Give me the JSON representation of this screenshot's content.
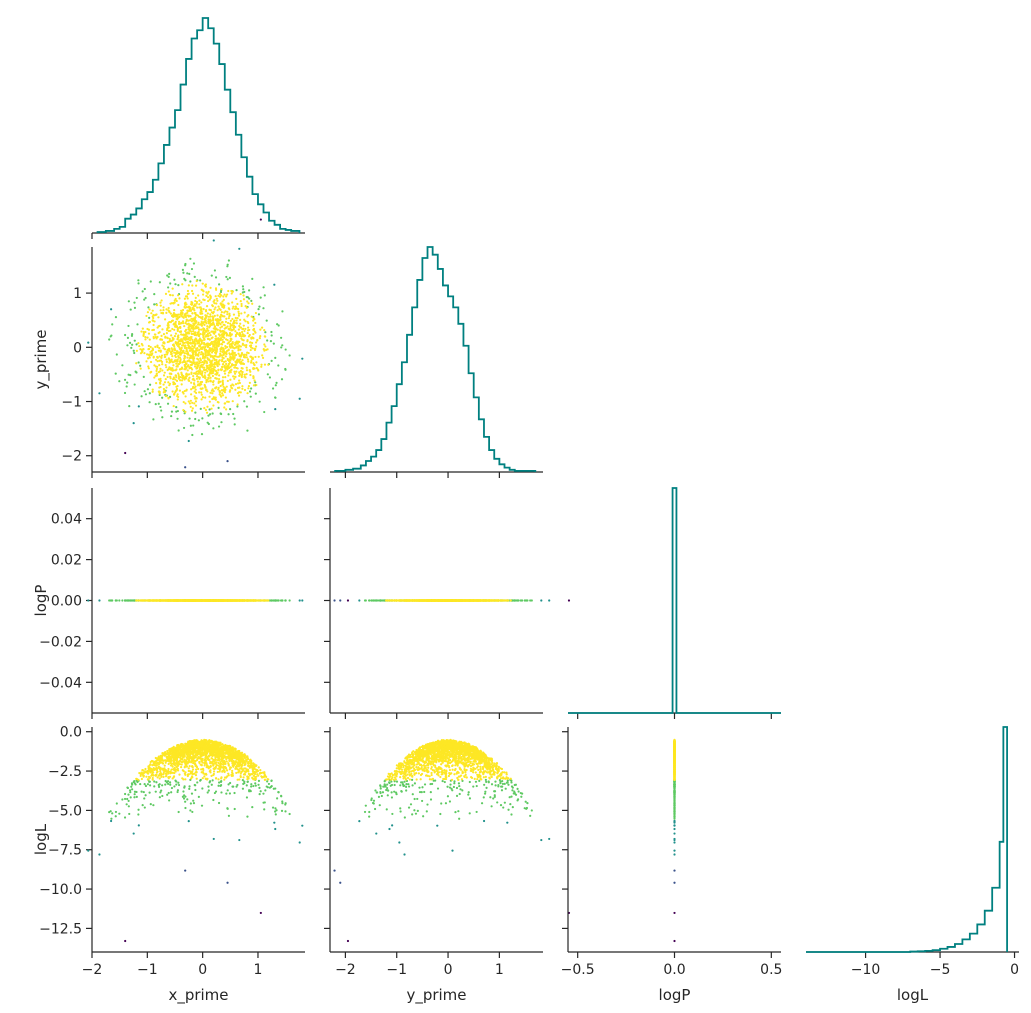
{
  "chart_data": {
    "type": "corner-plot",
    "variables": [
      "x_prime",
      "y_prime",
      "logP",
      "logL"
    ],
    "colors": {
      "histogram": "#008080",
      "axis": "#262626",
      "colormap": [
        "#440154",
        "#3b528b",
        "#21918c",
        "#5ec962",
        "#fde725"
      ]
    },
    "grid": false,
    "axes": {
      "x_prime": {
        "range": [
          -2,
          1.85
        ],
        "ticks": [
          -2,
          -1,
          0,
          1
        ],
        "tick_labels": [
          "−2",
          "−1",
          "0",
          "1"
        ]
      },
      "y_prime": {
        "range": [
          -2.3,
          1.85
        ],
        "ticks": [
          -2,
          -1,
          0,
          1
        ],
        "tick_labels": [
          "−2",
          "−1",
          "0",
          "1"
        ]
      },
      "logP": {
        "range": [
          -0.055,
          0.055
        ],
        "ticks": [
          -0.04,
          -0.02,
          0,
          0.02,
          0.04
        ],
        "tick_labels": [
          "−0.04",
          "−0.02",
          "0.00",
          "0.02",
          "0.04"
        ],
        "x_range": [
          -0.55,
          0.55
        ],
        "x_ticks": [
          -0.5,
          0,
          0.5
        ],
        "x_tick_labels": [
          "−0.5",
          "0.0",
          "0.5"
        ]
      },
      "logL": {
        "range": [
          -14,
          0.3
        ],
        "ticks": [
          -12.5,
          -10,
          -7.5,
          -5,
          -2.5,
          0
        ],
        "tick_labels": [
          "−12.5",
          "−10.0",
          "−7.5",
          "−5.0",
          "−2.5",
          "0.0"
        ],
        "x_ticks": [
          -10,
          -5,
          0
        ],
        "x_tick_labels": [
          "−10",
          "−5",
          "0"
        ]
      }
    },
    "histograms": {
      "x_prime": {
        "bins": [
          -1.9,
          -1.75,
          -1.6,
          -1.5,
          -1.4,
          -1.3,
          -1.2,
          -1.1,
          -1.0,
          -0.9,
          -0.8,
          -0.7,
          -0.6,
          -0.5,
          -0.4,
          -0.3,
          -0.2,
          -0.1,
          0.0,
          0.1,
          0.2,
          0.3,
          0.4,
          0.5,
          0.6,
          0.7,
          0.8,
          0.9,
          1.0,
          1.1,
          1.2,
          1.3,
          1.4,
          1.5,
          1.6,
          1.75
        ],
        "counts": [
          1,
          2,
          4,
          6,
          14,
          18,
          24,
          33,
          40,
          52,
          68,
          86,
          103,
          120,
          145,
          170,
          190,
          198,
          210,
          200,
          185,
          165,
          140,
          118,
          96,
          74,
          55,
          38,
          28,
          20,
          12,
          8,
          4,
          3,
          2
        ]
      },
      "y_prime": {
        "bins": [
          -2.2,
          -2.0,
          -1.85,
          -1.7,
          -1.6,
          -1.5,
          -1.4,
          -1.3,
          -1.2,
          -1.1,
          -1.0,
          -0.9,
          -0.8,
          -0.7,
          -0.6,
          -0.5,
          -0.4,
          -0.3,
          -0.2,
          -0.1,
          0.0,
          0.1,
          0.2,
          0.3,
          0.4,
          0.5,
          0.6,
          0.7,
          0.8,
          0.9,
          1.0,
          1.1,
          1.2,
          1.3,
          1.5,
          1.7
        ],
        "counts": [
          1,
          2,
          3,
          6,
          10,
          14,
          20,
          30,
          45,
          60,
          80,
          100,
          125,
          150,
          175,
          195,
          205,
          198,
          185,
          170,
          160,
          150,
          135,
          115,
          90,
          68,
          48,
          32,
          20,
          12,
          7,
          4,
          2,
          1,
          1
        ]
      },
      "logP": {
        "bins": [
          -0.55,
          -0.01,
          0.01,
          0.55
        ],
        "counts": [
          0,
          1000,
          0
        ]
      },
      "logL": {
        "bins": [
          -14,
          -7,
          -6.5,
          -6,
          -5.5,
          -5,
          -4.5,
          -4,
          -3.5,
          -3,
          -2.5,
          -2,
          -1.5,
          -1,
          -0.75,
          -0.5
        ],
        "counts": [
          0,
          2,
          3,
          5,
          8,
          14,
          22,
          35,
          55,
          80,
          120,
          180,
          280,
          480,
          980
        ]
      }
    },
    "outliers": [
      {
        "x_prime": -1.4,
        "y_prime": -1.95,
        "logL": -13.3
      },
      {
        "x_prime": 0.45,
        "y_prime": -2.1,
        "logL": -9.6
      }
    ]
  }
}
